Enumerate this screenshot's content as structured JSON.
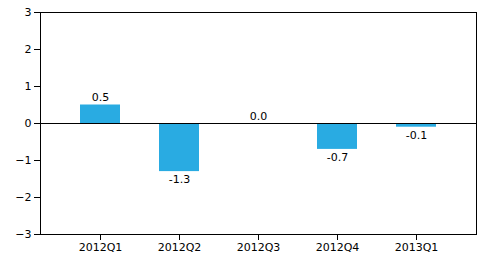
{
  "chart_data": {
    "type": "bar",
    "categories": [
      "2012Q1",
      "2012Q2",
      "2012Q3",
      "2012Q4",
      "2013Q1"
    ],
    "values": [
      0.5,
      -1.3,
      0.0,
      -0.7,
      -0.1
    ],
    "value_labels": [
      "0.5",
      "-1.3",
      "0.0",
      "-0.7",
      "-0.1"
    ],
    "color": "#29abe2",
    "ylim": [
      -3.0,
      3.0
    ],
    "yticks": [
      -3,
      -2,
      -1,
      0,
      1,
      2,
      3
    ],
    "grid": false,
    "data_labels": true
  }
}
